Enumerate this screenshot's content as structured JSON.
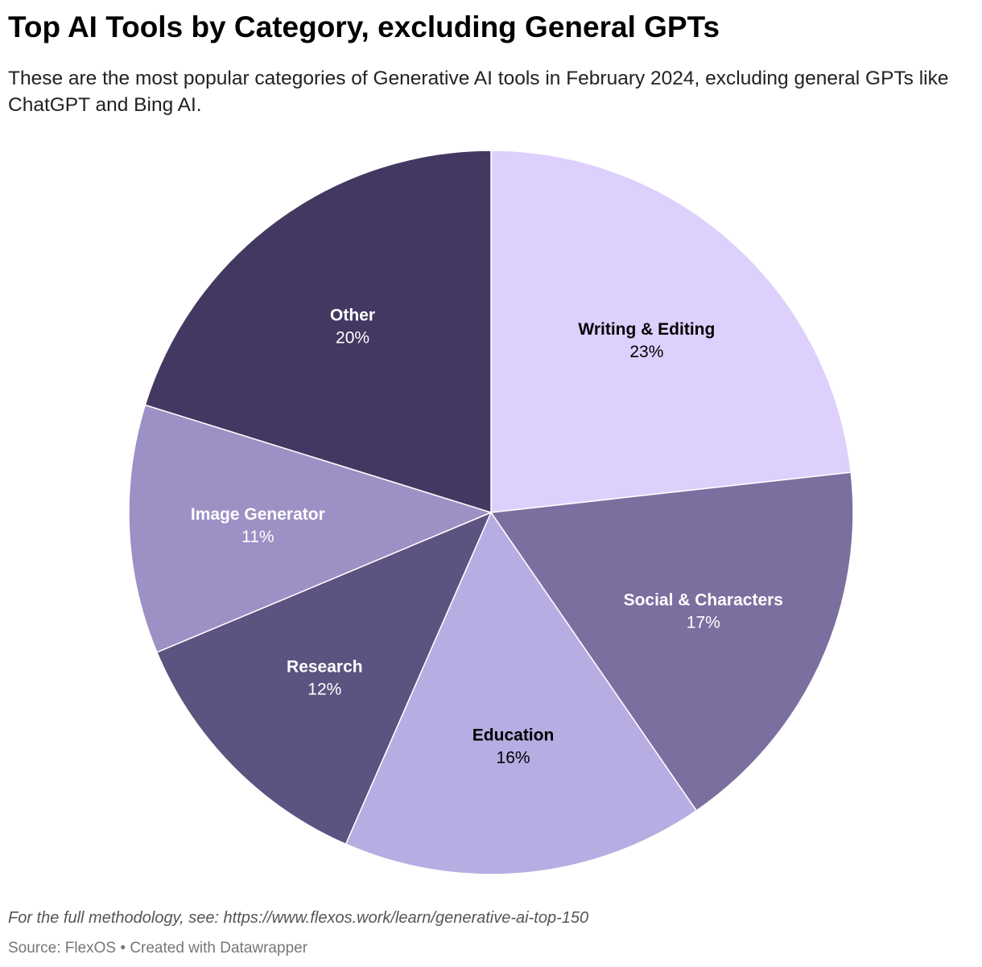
{
  "chart_data": {
    "type": "pie",
    "title": "Top AI Tools by Category, excluding General GPTs",
    "subtitle": "These are the most popular categories of Generative AI tools in February 2024, excluding general GPTs like ChatGPT and Bing AI.",
    "unit": "%",
    "slices": [
      {
        "label": "Writing & Editing",
        "value": 23,
        "value_label": "23%",
        "color": "#ddd0fd",
        "text_color": "#000000"
      },
      {
        "label": "Social & Characters",
        "value": 17,
        "value_label": "17%",
        "color": "#7b6fa0",
        "text_color": "#ffffff"
      },
      {
        "label": "Education",
        "value": 16,
        "value_label": "16%",
        "color": "#b8ade2",
        "text_color": "#000000"
      },
      {
        "label": "Research",
        "value": 12,
        "value_label": "12%",
        "color": "#5d5380",
        "text_color": "#ffffff"
      },
      {
        "label": "Image Generator",
        "value": 11,
        "value_label": "11%",
        "color": "#9d90c5",
        "text_color": "#ffffff"
      },
      {
        "label": "Other",
        "value": 20,
        "value_label": "20%",
        "color": "#433862",
        "text_color": "#ffffff"
      }
    ],
    "notes": "For the full methodology, see: https://www.flexos.work/learn/generative-ai-top-150",
    "source": "Source: FlexOS • Created with Datawrapper"
  }
}
